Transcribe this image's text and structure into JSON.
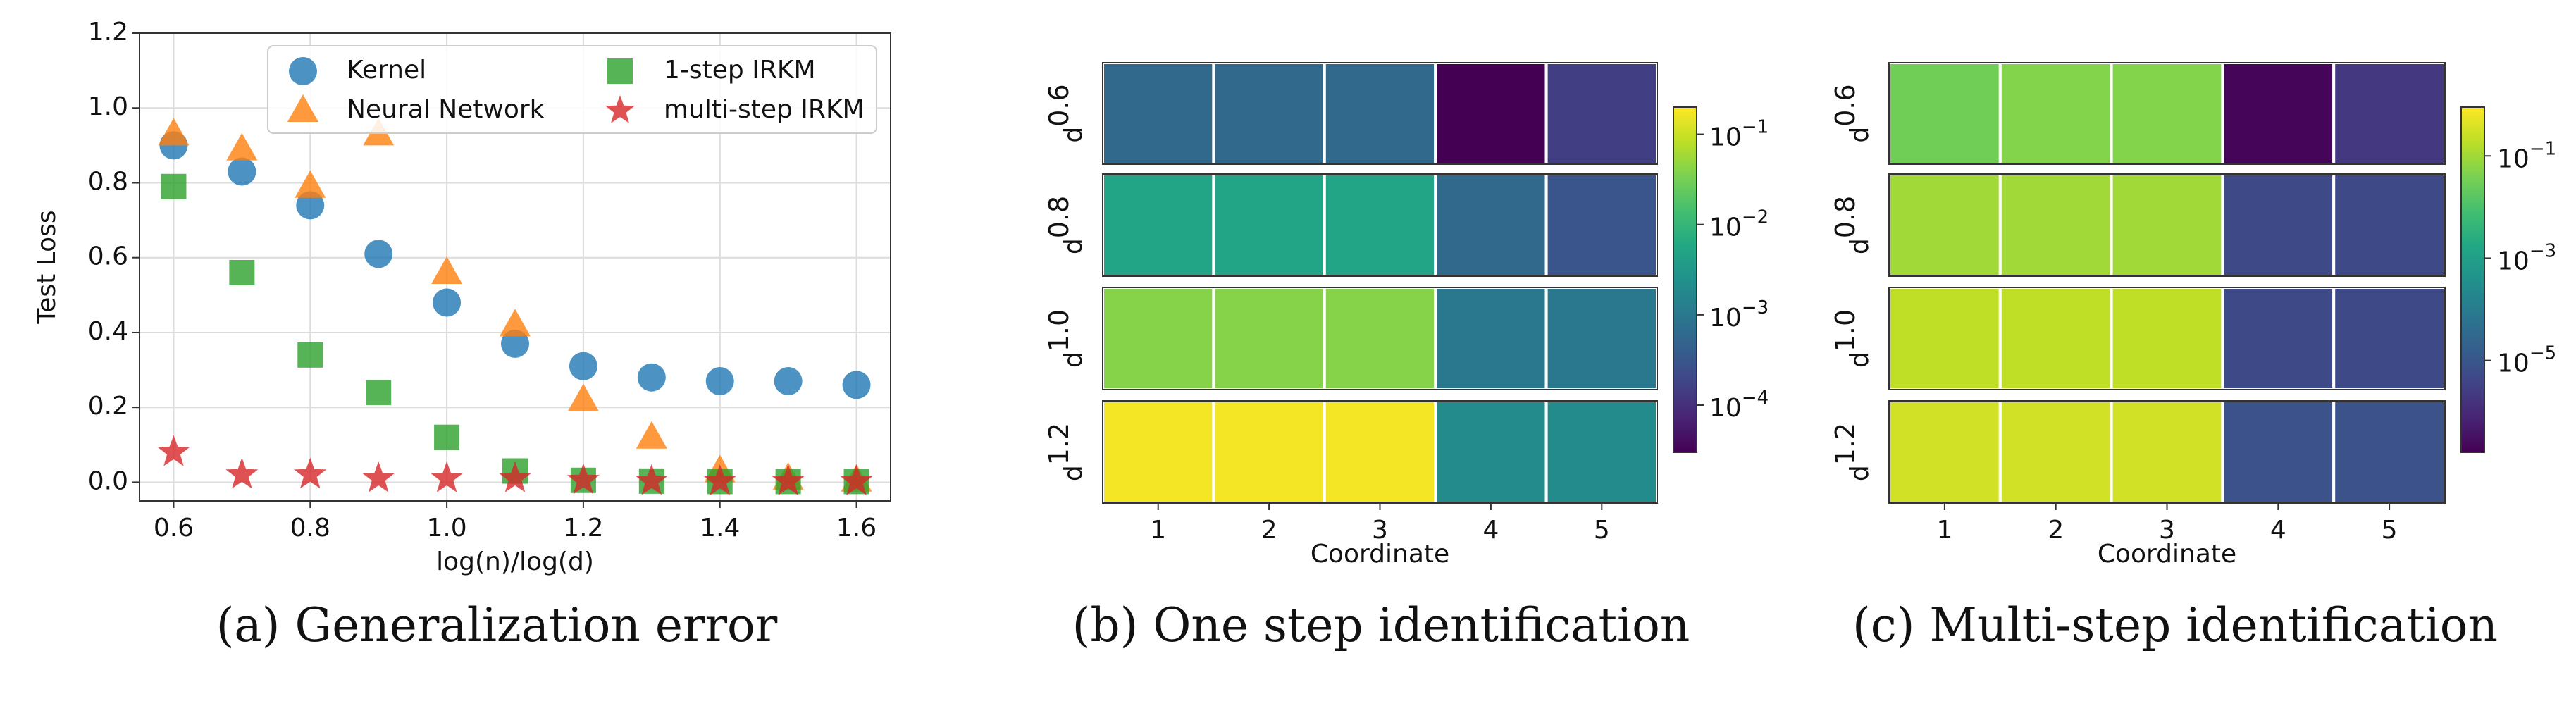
{
  "chart_data": [
    {
      "type": "scatter",
      "caption": "(a) Generalization error",
      "xlabel": "log(n)/log(d)",
      "ylabel": "Test Loss",
      "x": [
        0.6,
        0.7,
        0.8,
        0.9,
        1.0,
        1.1,
        1.2,
        1.3,
        1.4,
        1.5,
        1.6
      ],
      "series": [
        {
          "name": "Kernel",
          "color": "#1f77b4",
          "marker": "circle",
          "values": [
            0.9,
            0.83,
            0.74,
            0.61,
            0.48,
            0.37,
            0.31,
            0.28,
            0.27,
            0.27,
            0.26
          ]
        },
        {
          "name": "Neural Network",
          "color": "#ff7f0e",
          "marker": "triangle",
          "values": [
            0.93,
            0.89,
            0.79,
            0.93,
            0.56,
            0.42,
            0.22,
            0.12,
            0.03,
            0.01,
            0.005
          ]
        },
        {
          "name": "1-step IRKM",
          "color": "#2ca02c",
          "marker": "square",
          "values": [
            0.79,
            0.56,
            0.34,
            0.24,
            0.12,
            0.03,
            0.005,
            0.003,
            0.002,
            0.002,
            0.002
          ]
        },
        {
          "name": "multi-step IRKM",
          "color": "#d62728",
          "marker": "star",
          "values": [
            0.08,
            0.02,
            0.02,
            0.01,
            0.01,
            0.01,
            0.005,
            0.003,
            0.002,
            0.002,
            0.002
          ]
        }
      ],
      "xlim": [
        0.55,
        1.65
      ],
      "ylim": [
        -0.05,
        1.2
      ],
      "xticks": [
        0.6,
        0.8,
        {
          "value": 1,
          "label": "1.0"
        },
        1.2,
        1.4,
        1.6
      ],
      "yticks": [
        {
          "value": 0,
          "label": "0.0"
        },
        0.2,
        0.4,
        0.6,
        0.8,
        {
          "value": 1,
          "label": "1.0"
        },
        1.2
      ],
      "grid": true,
      "legend": "upper right"
    },
    {
      "type": "heatmap",
      "caption": "(b) One step identification",
      "xlabel": "Coordinate",
      "colormap": "viridis",
      "log_scale": true,
      "x_categories": [
        "1",
        "2",
        "3",
        "4",
        "5"
      ],
      "y_categories": [
        {
          "label": "d",
          "superscript": "0.6"
        },
        {
          "label": "d",
          "superscript": "0.8"
        },
        {
          "label": "d",
          "superscript": "1.0"
        },
        {
          "label": "d",
          "superscript": "1.2"
        }
      ],
      "values": [
        [
          0.0006,
          0.0006,
          0.0006,
          3e-05,
          0.00015
        ],
        [
          0.005,
          0.005,
          0.005,
          0.0006,
          0.0003
        ],
        [
          0.04,
          0.04,
          0.04,
          0.001,
          0.001
        ],
        [
          0.18,
          0.18,
          0.18,
          0.002,
          0.002
        ]
      ],
      "clim": [
        3e-05,
        0.2
      ],
      "cticks": [
        {
          "value": 0.0001,
          "label": "10",
          "exponent": "−4"
        },
        {
          "value": 0.001,
          "label": "10",
          "exponent": "−3"
        },
        {
          "value": 0.01,
          "label": "10",
          "exponent": "−2"
        },
        {
          "value": 0.1,
          "label": "10",
          "exponent": "−1"
        }
      ]
    },
    {
      "type": "heatmap",
      "caption": "(c) Multi-step identification",
      "xlabel": "Coordinate",
      "colormap": "viridis",
      "log_scale": true,
      "x_categories": [
        "1",
        "2",
        "3",
        "4",
        "5"
      ],
      "y_categories": [
        {
          "label": "d",
          "superscript": "0.6"
        },
        {
          "label": "d",
          "superscript": "0.8"
        },
        {
          "label": "d",
          "superscript": "1.0"
        },
        {
          "label": "d",
          "superscript": "1.2"
        }
      ],
      "values": [
        [
          0.03,
          0.05,
          0.05,
          2e-07,
          2e-06
        ],
        [
          0.1,
          0.1,
          0.1,
          5e-06,
          5e-06
        ],
        [
          0.2,
          0.2,
          0.2,
          5e-06,
          5e-06
        ],
        [
          0.3,
          0.3,
          0.3,
          8e-06,
          8e-06
        ]
      ],
      "clim": [
        1.6e-07,
        0.9
      ],
      "cticks": [
        {
          "value": 1e-05,
          "label": "10",
          "exponent": "−5"
        },
        {
          "value": 0.001,
          "label": "10",
          "exponent": "−3"
        },
        {
          "value": 0.1,
          "label": "10",
          "exponent": "−1"
        }
      ]
    }
  ]
}
